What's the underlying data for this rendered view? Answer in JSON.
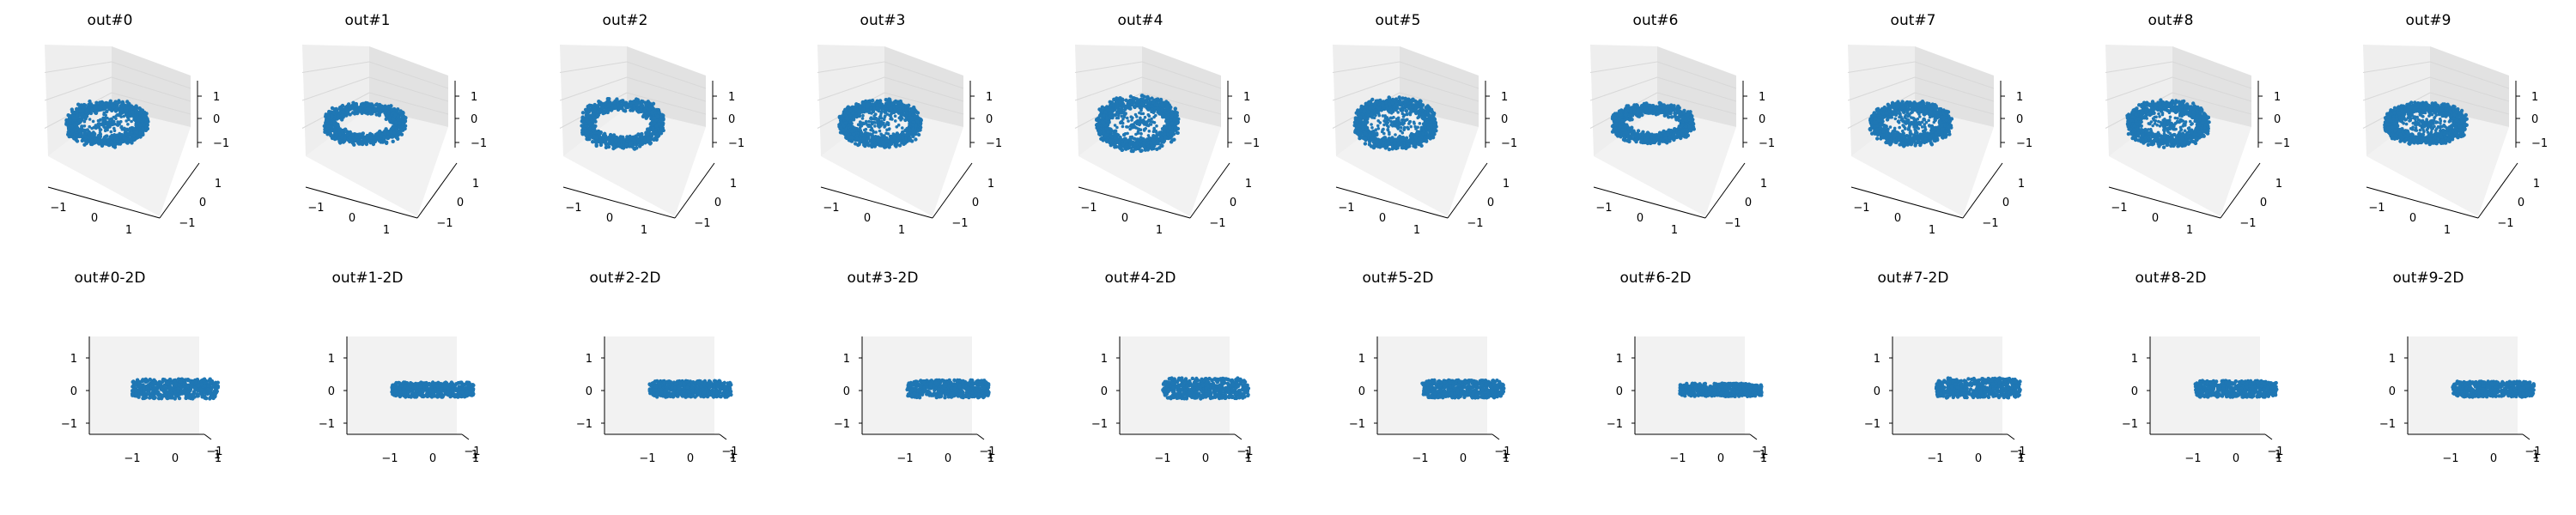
{
  "figure": {
    "rows": 2,
    "cols": 10
  },
  "colors": {
    "points": "#1f77b4",
    "pane_left": "#eeeeee",
    "pane_right": "#e2e2e2",
    "pane_floor": "#f2f2f2",
    "grid": "#d8d8d8",
    "axis": "#000000"
  },
  "chart_data": [
    {
      "type": "scatter3d",
      "title": "out#0",
      "xticks": [
        "−1",
        "0",
        "1"
      ],
      "yticks": [
        "−1",
        "0",
        "1"
      ],
      "zticks": [
        "−1",
        "0",
        "1"
      ],
      "ring": {
        "tilt": 0.42,
        "hole": "patchy"
      }
    },
    {
      "type": "scatter3d",
      "title": "out#1",
      "xticks": [
        "−1",
        "0",
        "1"
      ],
      "yticks": [
        "−1",
        "0",
        "1"
      ],
      "zticks": [
        "−1",
        "0",
        "1"
      ],
      "ring": {
        "tilt": 0.38,
        "hole": "clean"
      }
    },
    {
      "type": "scatter3d",
      "title": "out#2",
      "xticks": [
        "−1",
        "0",
        "1"
      ],
      "yticks": [
        "−1",
        "0",
        "1"
      ],
      "zticks": [
        "−1",
        "0",
        "1"
      ],
      "ring": {
        "tilt": 0.46,
        "hole": "clean"
      }
    },
    {
      "type": "scatter3d",
      "title": "out#3",
      "xticks": [
        "−1",
        "0",
        "1"
      ],
      "yticks": [
        "−1",
        "0",
        "1"
      ],
      "zticks": [
        "−1",
        "0",
        "1"
      ],
      "ring": {
        "tilt": 0.44,
        "hole": "patchy"
      }
    },
    {
      "type": "scatter3d",
      "title": "out#4",
      "xticks": [
        "−1",
        "0",
        "1"
      ],
      "yticks": [
        "−1",
        "0",
        "1"
      ],
      "zticks": [
        "−1",
        "0",
        "1"
      ],
      "ring": {
        "tilt": 0.5,
        "hole": "patchy"
      }
    },
    {
      "type": "scatter3d",
      "title": "out#5",
      "xticks": [
        "−1",
        "0",
        "1"
      ],
      "yticks": [
        "−1",
        "0",
        "1"
      ],
      "zticks": [
        "−1",
        "0",
        "1"
      ],
      "ring": {
        "tilt": 0.48,
        "hole": "patchy"
      }
    },
    {
      "type": "scatter3d",
      "title": "out#6",
      "xticks": [
        "−1",
        "0",
        "1"
      ],
      "yticks": [
        "−1",
        "0",
        "1"
      ],
      "zticks": [
        "−1",
        "0",
        "1"
      ],
      "ring": {
        "tilt": 0.36,
        "hole": "clean"
      }
    },
    {
      "type": "scatter3d",
      "title": "out#7",
      "xticks": [
        "−1",
        "0",
        "1"
      ],
      "yticks": [
        "−1",
        "0",
        "1"
      ],
      "zticks": [
        "−1",
        "0",
        "1"
      ],
      "ring": {
        "tilt": 0.4,
        "hole": "patchy"
      }
    },
    {
      "type": "scatter3d",
      "title": "out#8",
      "xticks": [
        "−1",
        "0",
        "1"
      ],
      "yticks": [
        "−1",
        "0",
        "1"
      ],
      "zticks": [
        "−1",
        "0",
        "1"
      ],
      "ring": {
        "tilt": 0.42,
        "hole": "patchy"
      }
    },
    {
      "type": "scatter3d",
      "title": "out#9",
      "xticks": [
        "−1",
        "0",
        "1"
      ],
      "yticks": [
        "−1",
        "0",
        "1"
      ],
      "zticks": [
        "−1",
        "0",
        "1"
      ],
      "ring": {
        "tilt": 0.38,
        "hole": "patchy"
      }
    },
    {
      "type": "scatter",
      "title": "out#0-2D",
      "xticks": [
        "−1",
        "0",
        "1"
      ],
      "yticks": [
        "−1",
        "0",
        "1"
      ],
      "edge_ticks": [
        "−1",
        "1"
      ],
      "band": {
        "x": [
          -1.0,
          1.0
        ],
        "y": [
          -0.25,
          0.35
        ]
      }
    },
    {
      "type": "scatter",
      "title": "out#1-2D",
      "xticks": [
        "−1",
        "0",
        "1"
      ],
      "yticks": [
        "−1",
        "0",
        "1"
      ],
      "edge_ticks": [
        "−1",
        "1"
      ],
      "band": {
        "x": [
          -0.95,
          0.95
        ],
        "y": [
          -0.2,
          0.25
        ]
      }
    },
    {
      "type": "scatter",
      "title": "out#2-2D",
      "xticks": [
        "−1",
        "0",
        "1"
      ],
      "yticks": [
        "−1",
        "0",
        "1"
      ],
      "edge_ticks": [
        "−1",
        "1"
      ],
      "band": {
        "x": [
          -0.95,
          0.95
        ],
        "y": [
          -0.2,
          0.3
        ]
      }
    },
    {
      "type": "scatter",
      "title": "out#3-2D",
      "xticks": [
        "−1",
        "0",
        "1"
      ],
      "yticks": [
        "−1",
        "0",
        "1"
      ],
      "edge_ticks": [
        "−1",
        "1"
      ],
      "band": {
        "x": [
          -0.95,
          0.95
        ],
        "y": [
          -0.22,
          0.32
        ]
      }
    },
    {
      "type": "scatter",
      "title": "out#4-2D",
      "xticks": [
        "−1",
        "0",
        "1"
      ],
      "yticks": [
        "−1",
        "0",
        "1"
      ],
      "edge_ticks": [
        "−1",
        "1"
      ],
      "band": {
        "x": [
          -1.0,
          1.0
        ],
        "y": [
          -0.25,
          0.38
        ]
      }
    },
    {
      "type": "scatter",
      "title": "out#5-2D",
      "xticks": [
        "−1",
        "0",
        "1"
      ],
      "yticks": [
        "−1",
        "0",
        "1"
      ],
      "edge_ticks": [
        "−1",
        "1"
      ],
      "band": {
        "x": [
          -0.95,
          0.95
        ],
        "y": [
          -0.22,
          0.32
        ]
      }
    },
    {
      "type": "scatter",
      "title": "out#6-2D",
      "xticks": [
        "−1",
        "0",
        "1"
      ],
      "yticks": [
        "−1",
        "0",
        "1"
      ],
      "edge_ticks": [
        "−1",
        "1"
      ],
      "band": {
        "x": [
          -0.95,
          0.95
        ],
        "y": [
          -0.18,
          0.22
        ]
      }
    },
    {
      "type": "scatter",
      "title": "out#7-2D",
      "xticks": [
        "−1",
        "0",
        "1"
      ],
      "yticks": [
        "−1",
        "0",
        "1"
      ],
      "edge_ticks": [
        "−1",
        "1"
      ],
      "band": {
        "x": [
          -0.98,
          0.98
        ],
        "y": [
          -0.22,
          0.38
        ]
      }
    },
    {
      "type": "scatter",
      "title": "out#8-2D",
      "xticks": [
        "−1",
        "0",
        "1"
      ],
      "yticks": [
        "−1",
        "0",
        "1"
      ],
      "edge_ticks": [
        "−1",
        "1"
      ],
      "band": {
        "x": [
          -0.95,
          0.95
        ],
        "y": [
          -0.2,
          0.3
        ]
      }
    },
    {
      "type": "scatter",
      "title": "out#9-2D",
      "xticks": [
        "−1",
        "0",
        "1"
      ],
      "yticks": [
        "−1",
        "0",
        "1"
      ],
      "edge_ticks": [
        "−1",
        "1"
      ],
      "band": {
        "x": [
          -0.95,
          0.95
        ],
        "y": [
          -0.2,
          0.28
        ]
      }
    }
  ]
}
